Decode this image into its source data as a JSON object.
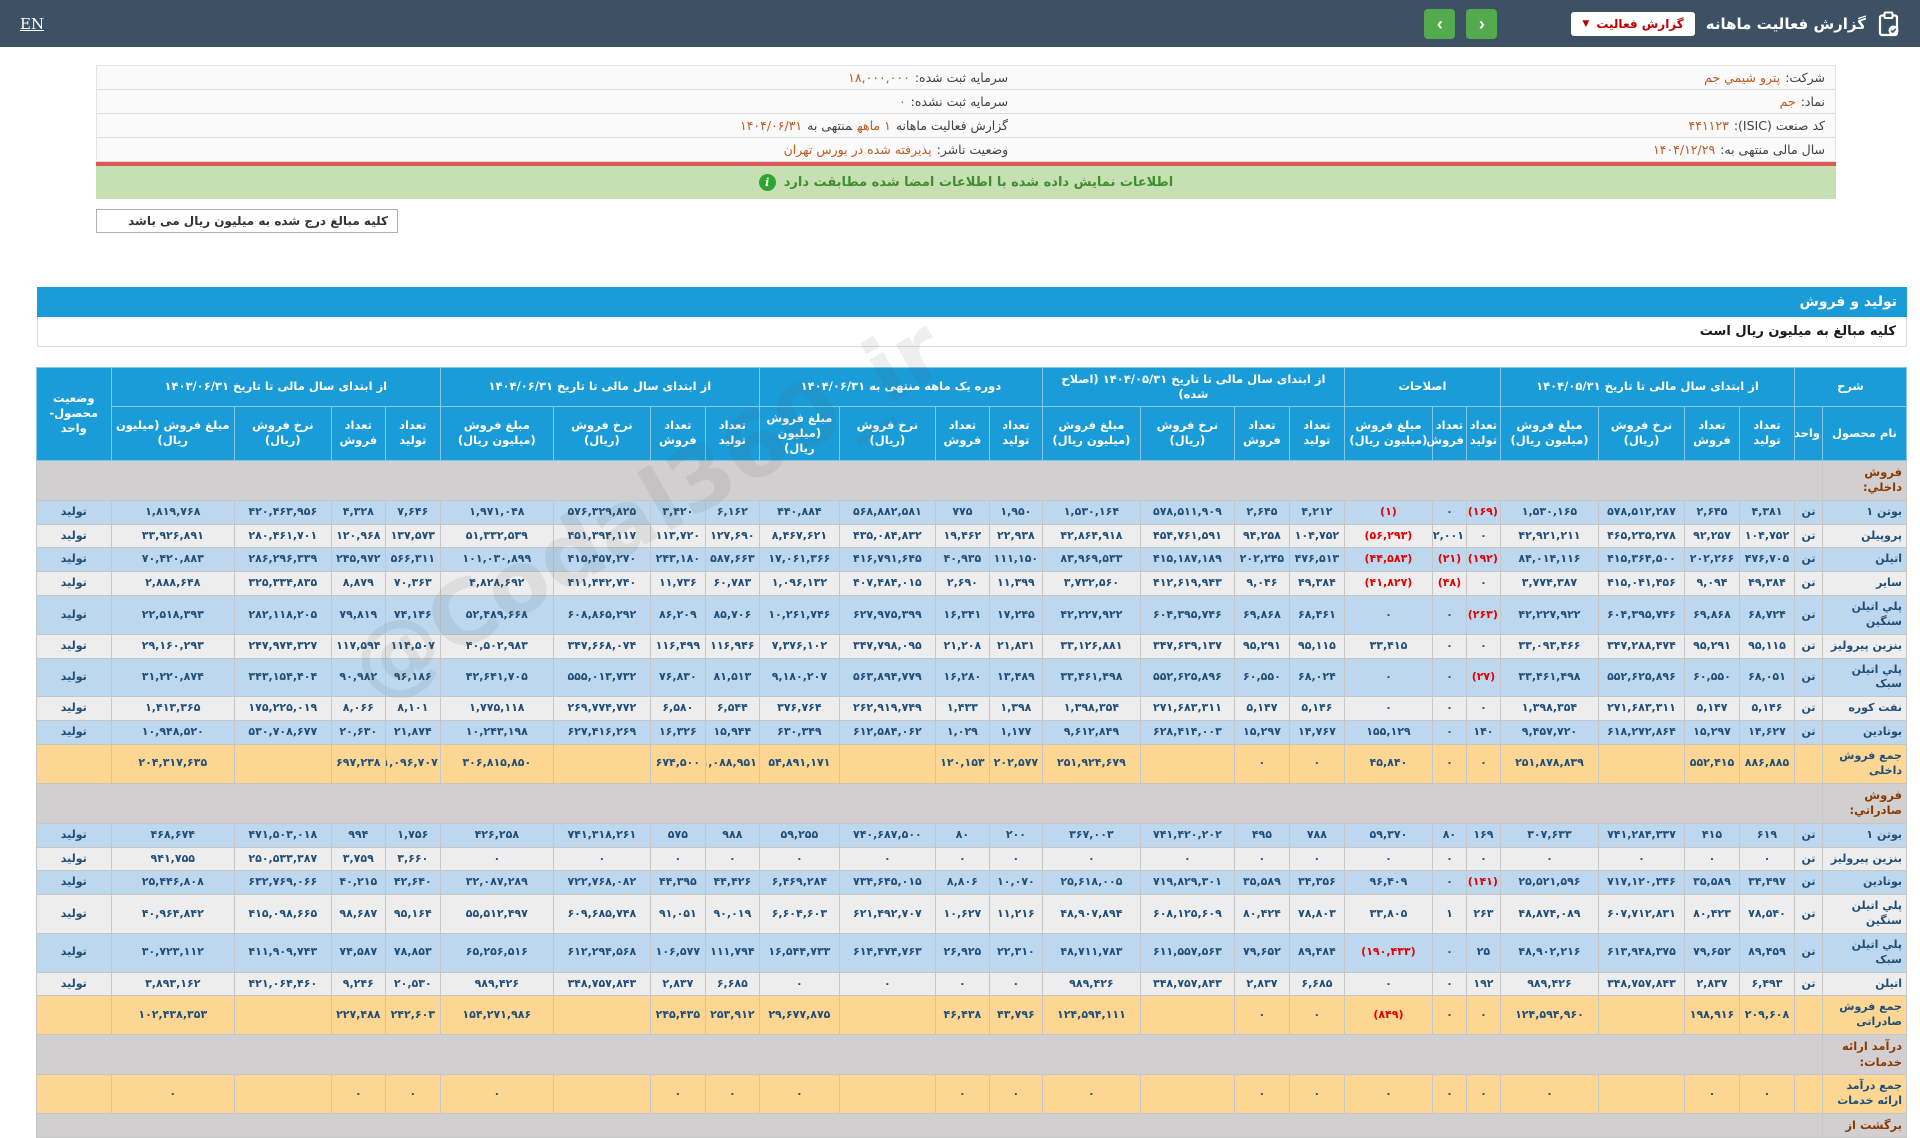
{
  "topbar": {
    "title": "گزارش فعالیت ماهانه",
    "report_type_button": "گزارش فعالیت",
    "lang_link": "EN",
    "nav_prev": "‹",
    "nav_next": "›"
  },
  "info": {
    "rows": [
      {
        "right": {
          "label": "شرکت:",
          "value": "پترو شیمي جم"
        },
        "left": {
          "label": "سرمایه ثبت شده:",
          "value": "۱۸,۰۰۰,۰۰۰"
        }
      },
      {
        "right": {
          "label": "نماد:",
          "value": "جم"
        },
        "left": {
          "label": "سرمایه ثبت نشده:",
          "value": "۰"
        }
      },
      {
        "right": {
          "label": "کد صنعت (ISIC):",
          "value": "۴۴۱۱۲۳"
        },
        "left": {
          "label": "گزارش فعالیت ماهانه",
          "value": "۱ ماهه",
          "mid": "منتهی به",
          "value2": "۱۴۰۴/۰۶/۳۱"
        }
      },
      {
        "right": {
          "label": "سال مالی منتهی به:",
          "value": "۱۴۰۴/۱۲/۲۹"
        },
        "left": {
          "label": "وضعیت ناشر:",
          "value": "پذیرفته شده در بورس تهران"
        }
      }
    ]
  },
  "notice": {
    "text": "اطلاعات نمایش داده شده با اطلاعات امضا شده مطابقت دارد",
    "icon": "i"
  },
  "note_box": "کلیه مبالغ درج شده به میلیون ریال می باشد",
  "band": {
    "title": "تولید و فروش",
    "subtitle": "کلیه مبالغ به میلیون ریال است"
  },
  "watermark": "@Codal360_ir",
  "table": {
    "desc_header": "شرح",
    "product_col": "نام محصول",
    "unit_col": "واحد",
    "status_col": "وضعیت محصول-واحد",
    "groups": [
      {
        "title": "از ابتدای سال مالی تا تاریخ ۱۴۰۴/۰۵/۳۱",
        "cols": [
          "تعداد تولید",
          "تعداد فروش",
          "نرخ فروش (ریال)",
          "مبلغ فروش (میلیون ریال)"
        ]
      },
      {
        "title": "اصلاحات",
        "cols": [
          "تعداد تولید",
          "تعداد فروش",
          "مبلغ فروش (میلیون ریال)"
        ]
      },
      {
        "title": "از ابتدای سال مالی تا تاریخ ۱۴۰۴/۰۵/۳۱ (اصلاح شده)",
        "cols": [
          "تعداد تولید",
          "تعداد فروش",
          "نرخ فروش (ریال)",
          "مبلغ فروش (میلیون ریال)"
        ]
      },
      {
        "title": "دوره یک ماهه منتهی به ۱۴۰۴/۰۶/۳۱",
        "cols": [
          "تعداد تولید",
          "تعداد فروش",
          "نرخ فروش (ریال)",
          "مبلغ فروش (میلیون ریال)"
        ]
      },
      {
        "title": "از ابتدای سال مالی تا تاریخ ۱۴۰۴/۰۶/۳۱",
        "cols": [
          "تعداد تولید",
          "تعداد فروش",
          "نرخ فروش (ریال)",
          "مبلغ فروش (میلیون ریال)"
        ]
      },
      {
        "title": "از ابتدای سال مالی تا تاریخ ۱۴۰۳/۰۶/۳۱",
        "cols": [
          "تعداد تولید",
          "تعداد فروش",
          "نرخ فروش (ریال)",
          "مبلغ فروش (میلیون ریال)"
        ]
      }
    ],
    "rows": [
      {
        "type": "section",
        "label": "فروش داخلي:"
      },
      {
        "type": "product",
        "name": "بوتن ۱",
        "unit": "تن",
        "status": "تولید",
        "g1": [
          "۴,۳۸۱",
          "۲,۶۴۵",
          "۵۷۸,۵۱۲,۲۸۷",
          "۱,۵۳۰,۱۶۵"
        ],
        "g2": [
          "(۱۶۹)",
          "۰",
          "(۱)"
        ],
        "g3": [
          "۴,۲۱۲",
          "۲,۶۴۵",
          "۵۷۸,۵۱۱,۹۰۹",
          "۱,۵۳۰,۱۶۴"
        ],
        "g4": [
          "۱,۹۵۰",
          "۷۷۵",
          "۵۶۸,۸۸۲,۵۸۱",
          "۴۴۰,۸۸۴"
        ],
        "g5": [
          "۶,۱۶۲",
          "۳,۴۲۰",
          "۵۷۶,۳۲۹,۸۲۵",
          "۱,۹۷۱,۰۴۸"
        ],
        "g6": [
          "۷,۶۴۶",
          "۴,۳۲۸",
          "۴۲۰,۴۶۳,۹۵۶",
          "۱,۸۱۹,۷۶۸"
        ]
      },
      {
        "type": "product",
        "name": "پروپیلن",
        "unit": "تن",
        "status": "تولید",
        "g1": [
          "۱۰۴,۷۵۲",
          "۹۲,۲۵۷",
          "۴۶۵,۲۳۵,۲۷۸",
          "۴۲,۹۲۱,۲۱۱"
        ],
        "g2": [
          "۰",
          "۲,۰۰۱",
          "(۵۶,۲۹۳)"
        ],
        "g3": [
          "۱۰۴,۷۵۲",
          "۹۴,۲۵۸",
          "۴۵۴,۷۶۱,۵۹۱",
          "۴۲,۸۶۴,۹۱۸"
        ],
        "g4": [
          "۲۲,۹۳۸",
          "۱۹,۴۶۲",
          "۴۳۵,۰۸۴,۸۳۲",
          "۸,۴۶۷,۶۲۱"
        ],
        "g5": [
          "۱۲۷,۶۹۰",
          "۱۱۳,۷۲۰",
          "۴۵۱,۳۹۴,۱۱۷",
          "۵۱,۳۳۲,۵۳۹"
        ],
        "g6": [
          "۱۳۷,۵۷۳",
          "۱۲۰,۹۶۸",
          "۲۸۰,۴۶۱,۷۰۱",
          "۳۳,۹۲۶,۸۹۱"
        ]
      },
      {
        "type": "product",
        "name": "اتیلن",
        "unit": "تن",
        "status": "تولید",
        "g1": [
          "۴۷۶,۷۰۵",
          "۲۰۲,۲۶۶",
          "۴۱۵,۳۶۴,۵۰۰",
          "۸۴,۰۱۴,۱۱۶"
        ],
        "g2": [
          "(۱۹۲)",
          "(۲۱)",
          "(۴۴,۵۸۳)"
        ],
        "g3": [
          "۴۷۶,۵۱۳",
          "۲۰۲,۲۴۵",
          "۴۱۵,۱۸۷,۱۸۹",
          "۸۳,۹۶۹,۵۳۳"
        ],
        "g4": [
          "۱۱۱,۱۵۰",
          "۴۰,۹۳۵",
          "۴۱۶,۷۹۱,۶۴۵",
          "۱۷,۰۶۱,۳۶۶"
        ],
        "g5": [
          "۵۸۷,۶۶۳",
          "۲۴۳,۱۸۰",
          "۴۱۵,۴۵۷,۲۷۰",
          "۱۰۱,۰۳۰,۸۹۹"
        ],
        "g6": [
          "۵۶۶,۳۱۱",
          "۲۴۵,۹۷۲",
          "۲۸۶,۲۹۶,۳۳۹",
          "۷۰,۴۲۰,۸۸۳"
        ]
      },
      {
        "type": "product",
        "name": "سایر",
        "unit": "تن",
        "status": "تولید",
        "g1": [
          "۴۹,۳۸۴",
          "۹,۰۹۴",
          "۴۱۵,۰۴۱,۴۵۶",
          "۳,۷۷۴,۳۸۷"
        ],
        "g2": [
          "۰",
          "(۴۸)",
          "(۴۱,۸۲۷)"
        ],
        "g3": [
          "۴۹,۳۸۴",
          "۹,۰۴۶",
          "۴۱۲,۶۱۹,۹۴۳",
          "۳,۷۳۲,۵۶۰"
        ],
        "g4": [
          "۱۱,۳۹۹",
          "۲,۶۹۰",
          "۴۰۷,۴۸۴,۰۱۵",
          "۱,۰۹۶,۱۳۲"
        ],
        "g5": [
          "۶۰,۷۸۳",
          "۱۱,۷۳۶",
          "۴۱۱,۴۴۲,۷۴۰",
          "۴,۸۲۸,۶۹۲"
        ],
        "g6": [
          "۷۰,۳۶۳",
          "۸,۸۷۹",
          "۳۲۵,۳۳۴,۸۳۵",
          "۲,۸۸۸,۶۴۸"
        ]
      },
      {
        "type": "product",
        "name": "پلي اتیلن سنگین",
        "unit": "تن",
        "status": "تولید",
        "g1": [
          "۶۸,۷۲۴",
          "۶۹,۸۶۸",
          "۶۰۴,۳۹۵,۷۴۶",
          "۴۲,۲۲۷,۹۲۲"
        ],
        "g2": [
          "(۲۶۳)",
          "۰",
          "۰"
        ],
        "g3": [
          "۶۸,۴۶۱",
          "۶۹,۸۶۸",
          "۶۰۴,۳۹۵,۷۴۶",
          "۴۲,۲۲۷,۹۲۲"
        ],
        "g4": [
          "۱۷,۲۴۵",
          "۱۶,۳۴۱",
          "۶۲۷,۹۷۵,۳۹۹",
          "۱۰,۲۶۱,۷۴۶"
        ],
        "g5": [
          "۸۵,۷۰۶",
          "۸۶,۲۰۹",
          "۶۰۸,۸۶۵,۲۹۲",
          "۵۲,۴۸۹,۶۶۸"
        ],
        "g6": [
          "۷۴,۱۴۶",
          "۷۹,۸۱۹",
          "۲۸۲,۱۱۸,۲۰۵",
          "۲۲,۵۱۸,۳۹۳"
        ]
      },
      {
        "type": "product",
        "name": "بنزین پیرولیز",
        "unit": "تن",
        "status": "تولید",
        "g1": [
          "۹۵,۱۱۵",
          "۹۵,۲۹۱",
          "۳۴۷,۲۸۸,۴۷۴",
          "۳۳,۰۹۳,۴۶۶"
        ],
        "g2": [
          "۰",
          "۰",
          "۳۳,۴۱۵"
        ],
        "g3": [
          "۹۵,۱۱۵",
          "۹۵,۲۹۱",
          "۳۴۷,۶۳۹,۱۳۷",
          "۳۳,۱۲۶,۸۸۱"
        ],
        "g4": [
          "۲۱,۸۳۱",
          "۲۱,۲۰۸",
          "۳۴۷,۷۹۸,۰۹۵",
          "۷,۳۷۶,۱۰۲"
        ],
        "g5": [
          "۱۱۶,۹۴۶",
          "۱۱۶,۴۹۹",
          "۳۴۷,۶۶۸,۰۷۴",
          "۴۰,۵۰۲,۹۸۳"
        ],
        "g6": [
          "۱۱۴,۵۰۷",
          "۱۱۷,۵۹۴",
          "۲۴۷,۹۷۴,۳۲۷",
          "۲۹,۱۶۰,۲۹۳"
        ]
      },
      {
        "type": "product",
        "name": "پلي اتیلن سبک",
        "unit": "تن",
        "status": "تولید",
        "g1": [
          "۶۸,۰۵۱",
          "۶۰,۵۵۰",
          "۵۵۲,۶۲۵,۸۹۶",
          "۳۳,۴۶۱,۴۹۸"
        ],
        "g2": [
          "(۲۷)",
          "۰",
          "۰"
        ],
        "g3": [
          "۶۸,۰۲۴",
          "۶۰,۵۵۰",
          "۵۵۲,۶۲۵,۸۹۶",
          "۳۳,۴۶۱,۴۹۸"
        ],
        "g4": [
          "۱۳,۴۸۹",
          "۱۶,۲۸۰",
          "۵۶۳,۸۹۴,۷۷۹",
          "۹,۱۸۰,۲۰۷"
        ],
        "g5": [
          "۸۱,۵۱۳",
          "۷۶,۸۳۰",
          "۵۵۵,۰۱۳,۷۳۲",
          "۴۲,۶۴۱,۷۰۵"
        ],
        "g6": [
          "۹۶,۱۸۶",
          "۹۰,۹۸۲",
          "۳۴۳,۱۵۴,۴۰۴",
          "۳۱,۲۲۰,۸۷۴"
        ]
      },
      {
        "type": "product",
        "name": "نفت کوره",
        "unit": "تن",
        "status": "تولید",
        "g1": [
          "۵,۱۴۶",
          "۵,۱۴۷",
          "۲۷۱,۶۸۳,۳۱۱",
          "۱,۳۹۸,۳۵۴"
        ],
        "g2": [
          "۰",
          "۰",
          "۰"
        ],
        "g3": [
          "۵,۱۴۶",
          "۵,۱۴۷",
          "۲۷۱,۶۸۳,۳۱۱",
          "۱,۳۹۸,۳۵۴"
        ],
        "g4": [
          "۱,۳۹۸",
          "۱,۴۳۳",
          "۲۶۲,۹۱۹,۷۴۹",
          "۳۷۶,۷۶۴"
        ],
        "g5": [
          "۶,۵۴۴",
          "۶,۵۸۰",
          "۲۶۹,۷۷۴,۷۷۲",
          "۱,۷۷۵,۱۱۸"
        ],
        "g6": [
          "۸,۱۰۱",
          "۸,۰۶۶",
          "۱۷۵,۲۲۵,۰۱۹",
          "۱,۴۱۳,۳۶۵"
        ]
      },
      {
        "type": "product",
        "name": "بوتادین",
        "unit": "تن",
        "status": "تولید",
        "g1": [
          "۱۴,۶۲۷",
          "۱۵,۲۹۷",
          "۶۱۸,۲۷۲,۸۶۴",
          "۹,۴۵۷,۷۲۰"
        ],
        "g2": [
          "۱۴۰",
          "۰",
          "۱۵۵,۱۲۹"
        ],
        "g3": [
          "۱۴,۷۶۷",
          "۱۵,۲۹۷",
          "۶۲۸,۴۱۴,۰۰۳",
          "۹,۶۱۲,۸۴۹"
        ],
        "g4": [
          "۱,۱۷۷",
          "۱,۰۲۹",
          "۶۱۲,۵۸۴,۰۶۲",
          "۶۳۰,۳۴۹"
        ],
        "g5": [
          "۱۵,۹۴۴",
          "۱۶,۳۲۶",
          "۶۲۷,۴۱۶,۲۶۹",
          "۱۰,۲۴۳,۱۹۸"
        ],
        "g6": [
          "۲۱,۸۷۴",
          "۲۰,۶۳۰",
          "۵۳۰,۷۰۸,۶۷۷",
          "۱۰,۹۴۸,۵۲۰"
        ]
      },
      {
        "type": "total",
        "name": "جمع فروش داخلی",
        "unit": "",
        "status": "",
        "g1": [
          "۸۸۶,۸۸۵",
          "۵۵۲,۴۱۵",
          "",
          "۲۵۱,۸۷۸,۸۳۹"
        ],
        "g2": [
          "۰",
          "۰",
          "۴۵,۸۴۰"
        ],
        "g3": [
          "۰",
          "۰",
          "",
          "۲۵۱,۹۲۴,۶۷۹"
        ],
        "g4": [
          "۲۰۲,۵۷۷",
          "۱۲۰,۱۵۳",
          "",
          "۵۴,۸۹۱,۱۷۱"
        ],
        "g5": [
          "۱,۰۸۸,۹۵۱",
          "۶۷۴,۵۰۰",
          "",
          "۳۰۶,۸۱۵,۸۵۰"
        ],
        "g6": [
          "۱,۰۹۶,۷۰۷",
          "۶۹۷,۲۳۸",
          "",
          "۲۰۴,۳۱۷,۶۳۵"
        ]
      },
      {
        "type": "section",
        "label": "فروش صادراتي:"
      },
      {
        "type": "product",
        "name": "بوتن ۱",
        "unit": "تن",
        "status": "تولید",
        "g1": [
          "۶۱۹",
          "۴۱۵",
          "۷۴۱,۲۸۴,۳۳۷",
          "۳۰۷,۶۳۳"
        ],
        "g2": [
          "۱۶۹",
          "۸۰",
          "۵۹,۳۷۰"
        ],
        "g3": [
          "۷۸۸",
          "۴۹۵",
          "۷۴۱,۴۲۰,۲۰۲",
          "۳۶۷,۰۰۳"
        ],
        "g4": [
          "۲۰۰",
          "۸۰",
          "۷۴۰,۶۸۷,۵۰۰",
          "۵۹,۲۵۵"
        ],
        "g5": [
          "۹۸۸",
          "۵۷۵",
          "۷۴۱,۳۱۸,۲۶۱",
          "۴۲۶,۲۵۸"
        ],
        "g6": [
          "۱,۷۵۶",
          "۹۹۴",
          "۴۷۱,۵۰۳,۰۱۸",
          "۴۶۸,۶۷۴"
        ]
      },
      {
        "type": "product",
        "name": "بنزین پیرولیز",
        "unit": "تن",
        "status": "تولید",
        "g1": [
          "۰",
          "۰",
          "۰",
          "۰"
        ],
        "g2": [
          "۰",
          "۰",
          "۰"
        ],
        "g3": [
          "۰",
          "۰",
          "۰",
          "۰"
        ],
        "g4": [
          "۰",
          "۰",
          "۰",
          "۰"
        ],
        "g5": [
          "۰",
          "۰",
          "۰",
          "۰"
        ],
        "g6": [
          "۳,۶۶۰",
          "۳,۷۵۹",
          "۲۵۰,۵۳۳,۳۸۷",
          "۹۴۱,۷۵۵"
        ]
      },
      {
        "type": "product",
        "name": "بوتادین",
        "unit": "تن",
        "status": "تولید",
        "g1": [
          "۳۴,۴۹۷",
          "۳۵,۵۸۹",
          "۷۱۷,۱۲۰,۳۴۶",
          "۲۵,۵۲۱,۵۹۶"
        ],
        "g2": [
          "(۱۴۱)",
          "۰",
          "۹۶,۴۰۹"
        ],
        "g3": [
          "۳۴,۳۵۶",
          "۳۵,۵۸۹",
          "۷۱۹,۸۲۹,۳۰۱",
          "۲۵,۶۱۸,۰۰۵"
        ],
        "g4": [
          "۱۰,۰۷۰",
          "۸,۸۰۶",
          "۷۳۴,۶۴۵,۰۱۵",
          "۶,۴۶۹,۲۸۴"
        ],
        "g5": [
          "۴۴,۴۲۶",
          "۴۴,۳۹۵",
          "۷۲۲,۷۶۸,۰۸۲",
          "۳۲,۰۸۷,۲۸۹"
        ],
        "g6": [
          "۴۲,۶۴۰",
          "۴۰,۲۱۵",
          "۶۳۲,۷۶۹,۰۶۶",
          "۲۵,۴۴۶,۸۰۸"
        ]
      },
      {
        "type": "product",
        "name": "پلي اتیلن سنگین",
        "unit": "تن",
        "status": "تولید",
        "g1": [
          "۷۸,۵۴۰",
          "۸۰,۴۲۳",
          "۶۰۷,۷۱۲,۸۳۱",
          "۴۸,۸۷۴,۰۸۹"
        ],
        "g2": [
          "۲۶۳",
          "۱",
          "۳۳,۸۰۵"
        ],
        "g3": [
          "۷۸,۸۰۳",
          "۸۰,۴۲۴",
          "۶۰۸,۱۲۵,۶۰۹",
          "۴۸,۹۰۷,۸۹۴"
        ],
        "g4": [
          "۱۱,۲۱۶",
          "۱۰,۶۲۷",
          "۶۲۱,۴۹۲,۷۰۷",
          "۶,۶۰۴,۶۰۳"
        ],
        "g5": [
          "۹۰,۰۱۹",
          "۹۱,۰۵۱",
          "۶۰۹,۶۸۵,۷۴۸",
          "۵۵,۵۱۲,۴۹۷"
        ],
        "g6": [
          "۹۵,۱۶۴",
          "۹۸,۶۸۷",
          "۴۱۵,۰۹۸,۶۶۵",
          "۴۰,۹۶۴,۸۴۲"
        ]
      },
      {
        "type": "product",
        "name": "پلي اتیلن سبک",
        "unit": "تن",
        "status": "تولید",
        "g1": [
          "۸۹,۴۵۹",
          "۷۹,۶۵۲",
          "۶۱۳,۹۴۸,۳۷۵",
          "۴۸,۹۰۲,۲۱۶"
        ],
        "g2": [
          "۲۵",
          "۰",
          "(۱۹۰,۴۳۳)"
        ],
        "g3": [
          "۸۹,۴۸۴",
          "۷۹,۶۵۲",
          "۶۱۱,۵۵۷,۵۶۳",
          "۴۸,۷۱۱,۷۸۳"
        ],
        "g4": [
          "۲۲,۳۱۰",
          "۲۶,۹۲۵",
          "۶۱۴,۴۷۴,۷۶۳",
          "۱۶,۵۴۴,۷۳۳"
        ],
        "g5": [
          "۱۱۱,۷۹۴",
          "۱۰۶,۵۷۷",
          "۶۱۲,۲۹۴,۵۶۸",
          "۶۵,۲۵۶,۵۱۶"
        ],
        "g6": [
          "۷۸,۸۵۳",
          "۷۴,۵۸۷",
          "۴۱۱,۹۰۹,۷۴۳",
          "۳۰,۷۲۳,۱۱۲"
        ]
      },
      {
        "type": "product",
        "name": "اتیلن",
        "unit": "تن",
        "status": "تولید",
        "g1": [
          "۶,۴۹۳",
          "۲,۸۳۷",
          "۳۴۸,۷۵۷,۸۴۳",
          "۹۸۹,۴۲۶"
        ],
        "g2": [
          "۱۹۲",
          "۰",
          "۰"
        ],
        "g3": [
          "۶,۶۸۵",
          "۲,۸۳۷",
          "۳۴۸,۷۵۷,۸۴۳",
          "۹۸۹,۴۲۶"
        ],
        "g4": [
          "۰",
          "۰",
          "۰",
          "۰"
        ],
        "g5": [
          "۶,۶۸۵",
          "۲,۸۳۷",
          "۳۴۸,۷۵۷,۸۴۳",
          "۹۸۹,۴۲۶"
        ],
        "g6": [
          "۲۰,۵۳۰",
          "۹,۲۴۶",
          "۴۲۱,۰۶۴,۴۶۰",
          "۳,۸۹۳,۱۶۲"
        ]
      },
      {
        "type": "total",
        "name": "جمع فروش صادراتی",
        "unit": "",
        "status": "",
        "g1": [
          "۲۰۹,۶۰۸",
          "۱۹۸,۹۱۶",
          "",
          "۱۲۴,۵۹۴,۹۶۰"
        ],
        "g2": [
          "۰",
          "۰",
          "(۸۴۹)"
        ],
        "g3": [
          "۰",
          "۰",
          "",
          "۱۲۴,۵۹۴,۱۱۱"
        ],
        "g4": [
          "۴۳,۷۹۶",
          "۴۶,۴۳۸",
          "",
          "۲۹,۶۷۷,۸۷۵"
        ],
        "g5": [
          "۲۵۳,۹۱۲",
          "۲۴۵,۴۳۵",
          "",
          "۱۵۴,۲۷۱,۹۸۶"
        ],
        "g6": [
          "۲۴۲,۶۰۳",
          "۲۲۷,۴۸۸",
          "",
          "۱۰۲,۴۳۸,۳۵۳"
        ]
      },
      {
        "type": "section",
        "label": "درآمد ارائه خدمات:"
      },
      {
        "type": "total",
        "name": "جمع درآمد ارائه خدمات",
        "unit": "",
        "status": "",
        "g1": [
          "۰",
          "۰",
          "",
          "۰"
        ],
        "g2": [
          "۰",
          "۰",
          "۰"
        ],
        "g3": [
          "۰",
          "۰",
          "",
          "۰"
        ],
        "g4": [
          "۰",
          "۰",
          "",
          "۰"
        ],
        "g5": [
          "۰",
          "۰",
          "",
          "۰"
        ],
        "g6": [
          "۰",
          "۰",
          "",
          "۰"
        ]
      },
      {
        "type": "section",
        "label": "برگشت از"
      }
    ]
  }
}
